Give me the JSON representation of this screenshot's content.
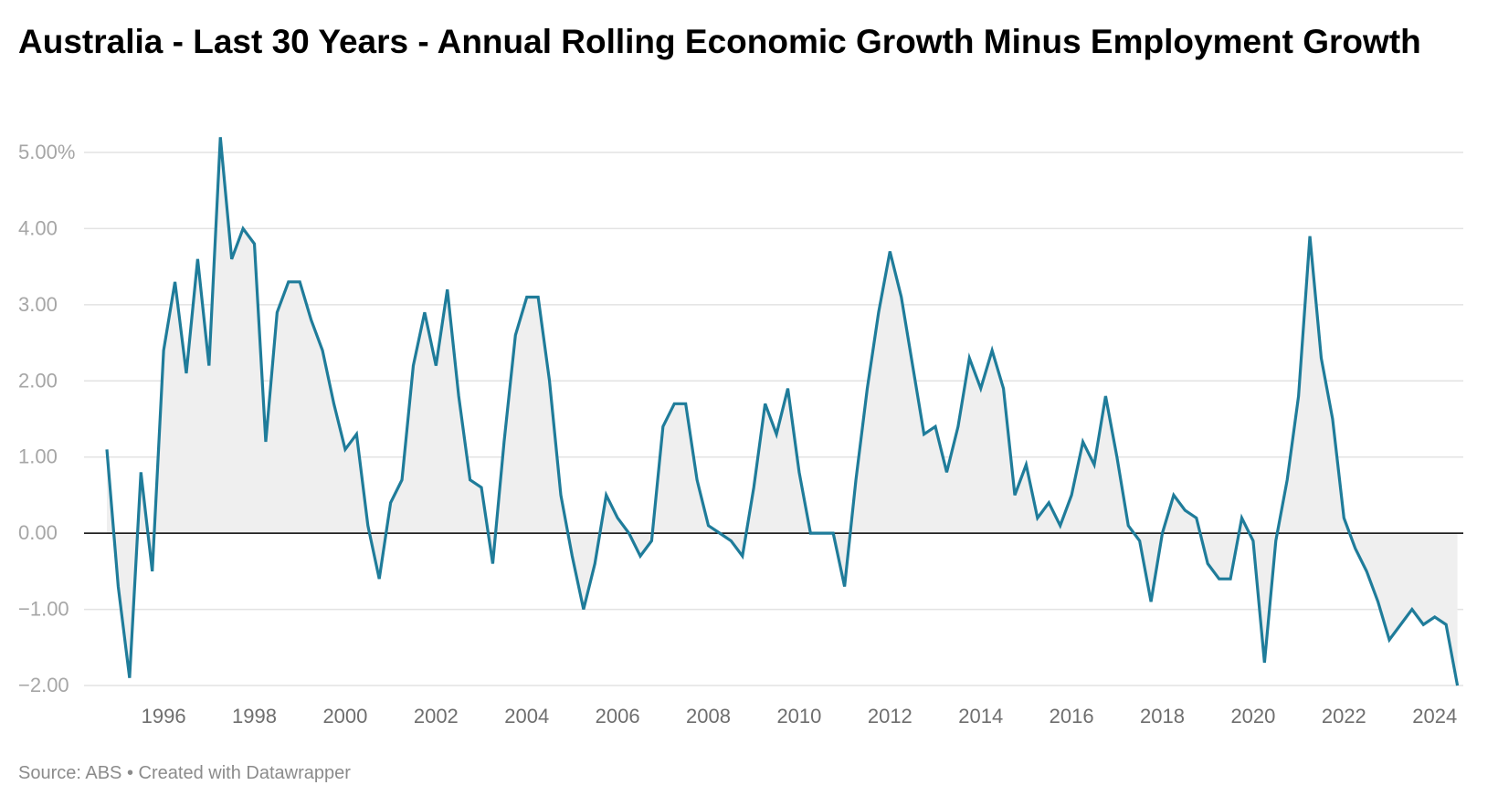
{
  "title": "Australia - Last 30 Years - Annual Rolling Economic Growth Minus Employment Growth",
  "footer": {
    "source": "Source: ABS",
    "separator": "•",
    "credit": "Created with Datawrapper"
  },
  "colors": {
    "line": "#1f7c9a",
    "area": "#efefef",
    "grid": "#e3e3e3",
    "zero_line": "#000000",
    "tick_label_y": "#a6a6a6",
    "tick_label_x": "#6e6e6e"
  },
  "chart_data": {
    "type": "area",
    "title": "Australia - Last 30 Years - Annual Rolling Economic Growth Minus Employment Growth",
    "xlabel": "",
    "ylabel": "",
    "ylim": [
      -2,
      5
    ],
    "xlim": [
      1994.75,
      2024.75
    ],
    "grid": true,
    "legend": "none",
    "y_ticks": [
      {
        "value": 5,
        "label": "5.00%"
      },
      {
        "value": 4,
        "label": "4.00"
      },
      {
        "value": 3,
        "label": "3.00"
      },
      {
        "value": 2,
        "label": "2.00"
      },
      {
        "value": 1,
        "label": "1.00"
      },
      {
        "value": 0,
        "label": "0.00"
      },
      {
        "value": -1,
        "label": "−1.00"
      },
      {
        "value": -2,
        "label": "−2.00"
      }
    ],
    "x_ticks": [
      "1996",
      "1998",
      "2000",
      "2002",
      "2004",
      "2006",
      "2008",
      "2010",
      "2012",
      "2014",
      "2016",
      "2018",
      "2020",
      "2022",
      "2024"
    ],
    "series": [
      {
        "x_start": "1994-Q4",
        "frequency": "quarterly",
        "values": [
          1.1,
          -0.7,
          -1.9,
          0.8,
          -0.5,
          2.4,
          3.3,
          2.1,
          3.6,
          2.2,
          5.2,
          3.6,
          4.0,
          3.8,
          1.2,
          2.9,
          3.3,
          3.3,
          2.8,
          2.4,
          1.7,
          1.1,
          1.3,
          0.1,
          -0.6,
          0.4,
          0.7,
          2.2,
          2.9,
          2.2,
          3.2,
          1.8,
          0.7,
          0.6,
          -0.4,
          1.2,
          2.6,
          3.1,
          3.1,
          2.0,
          0.5,
          -0.3,
          -1.0,
          -0.4,
          0.5,
          0.2,
          0.0,
          -0.3,
          -0.1,
          1.4,
          1.7,
          1.7,
          0.7,
          0.1,
          0.0,
          -0.1,
          -0.3,
          0.6,
          1.7,
          1.3,
          1.9,
          0.8,
          0.0,
          0.0,
          0.0,
          -0.7,
          0.7,
          1.9,
          2.9,
          3.7,
          3.1,
          2.2,
          1.3,
          1.4,
          0.8,
          1.4,
          2.3,
          1.9,
          2.4,
          1.9,
          0.5,
          0.9,
          0.2,
          0.4,
          0.1,
          0.5,
          1.2,
          0.9,
          1.8,
          1.0,
          0.1,
          -0.1,
          -0.9,
          0.0,
          0.5,
          0.3,
          0.2,
          -0.4,
          -0.6,
          -0.6,
          0.2,
          -0.1,
          -1.7,
          -0.1,
          0.7,
          1.8,
          3.9,
          2.3,
          1.5,
          0.2,
          -0.2,
          -0.5,
          -0.9,
          -1.4,
          -1.2,
          -1.0,
          -1.2,
          -1.1,
          -1.2,
          -2.0
        ]
      }
    ]
  }
}
